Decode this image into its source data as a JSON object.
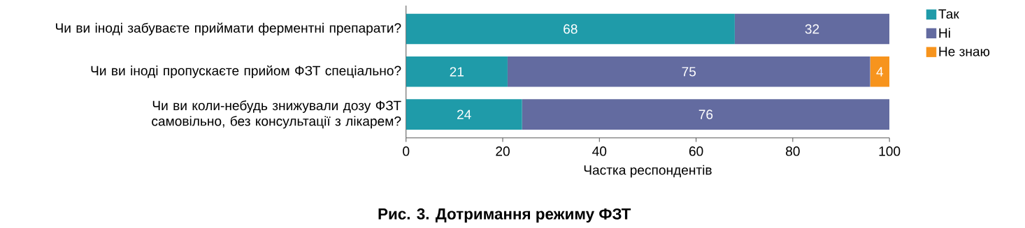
{
  "chart_data": {
    "type": "bar",
    "orientation": "horizontal",
    "stacked": true,
    "title": "Рис. 3. Дотримання режиму ФЗТ",
    "xlabel": "Частка респондентів",
    "categories": [
      "Чи ви іноді забуваєте приймати ферментні препарати?",
      "Чи ви іноді пропускаєте прийом ФЗТ спеціально?",
      "Чи ви коли-небудь знижували дозу ФЗТ самовільно, без консультації з лікарем?"
    ],
    "series": [
      {
        "name": "Так",
        "color": "#1f9ba9",
        "values": [
          68,
          21,
          24
        ]
      },
      {
        "name": "Ні",
        "color": "#636ba0",
        "values": [
          32,
          75,
          76
        ]
      },
      {
        "name": "Не знаю",
        "color": "#f7941d",
        "values": [
          null,
          4,
          null
        ]
      }
    ],
    "xlim": [
      0,
      100
    ],
    "xticks": [
      0,
      20,
      40,
      60,
      80,
      100
    ],
    "data_labels": true,
    "legend": "top right",
    "grid": false
  }
}
